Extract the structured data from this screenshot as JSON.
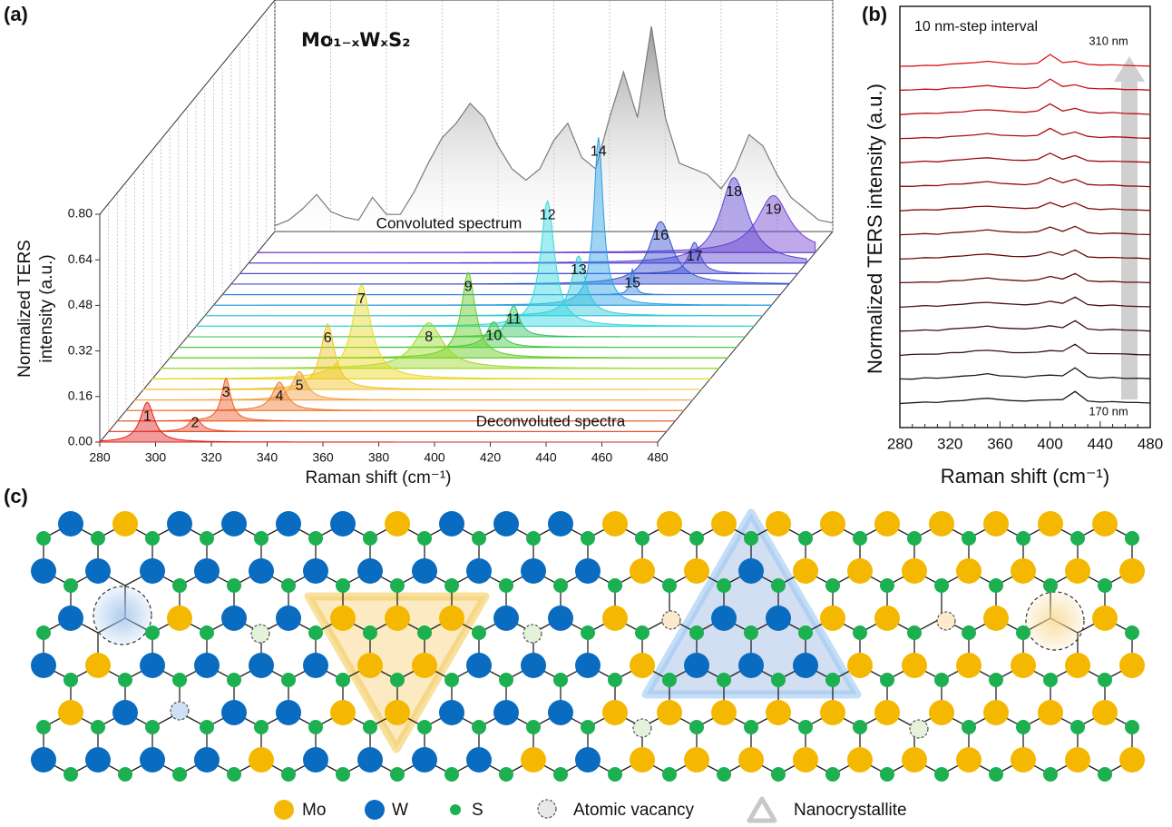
{
  "panel_labels": [
    "(a)",
    "(b)",
    "(c)"
  ],
  "chart_data": [
    {
      "type": "waterfall",
      "title": "Mo₁₋ₓWₓS₂",
      "xlabel": "Raman shift (cm⁻¹)",
      "ylabel": [
        "Normalized TERS",
        "intensity (a.u.)"
      ],
      "xlim": [
        280,
        480
      ],
      "ylim": [
        0,
        0.8
      ],
      "xticks": [
        280,
        300,
        320,
        340,
        360,
        380,
        400,
        420,
        440,
        460,
        480
      ],
      "yticks": [
        {
          "value": 0,
          "label": "0.00"
        },
        0.16,
        0.32,
        0.48,
        0.64,
        {
          "value": 0.8,
          "label": "0.80"
        }
      ],
      "deconvoluted_label": "Deconvoluted spectra",
      "series": [
        {
          "name": "1",
          "color": "#e02020",
          "center": 297,
          "height": 0.14,
          "fwhm": 6
        },
        {
          "name": "2",
          "color": "#e84a2a",
          "center": 311,
          "height": 0.05,
          "fwhm": 5
        },
        {
          "name": "3",
          "color": "#ee5a28",
          "center": 319,
          "height": 0.15,
          "fwhm": 4
        },
        {
          "name": "4",
          "color": "#f07a30",
          "center": 335,
          "height": 0.1,
          "fwhm": 6
        },
        {
          "name": "5",
          "color": "#f5a040",
          "center": 339,
          "height": 0.1,
          "fwhm": 6
        },
        {
          "name": "6",
          "color": "#f0c020",
          "center": 346,
          "height": 0.23,
          "fwhm": 6
        },
        {
          "name": "7",
          "color": "#e8d820",
          "center": 355,
          "height": 0.33,
          "fwhm": 8
        },
        {
          "name": "8",
          "color": "#9ad828",
          "center": 376,
          "height": 0.16,
          "fwhm": 12
        },
        {
          "name": "9",
          "color": "#60cc20",
          "center": 387,
          "height": 0.3,
          "fwhm": 6
        },
        {
          "name": "10",
          "color": "#40c840",
          "center": 393,
          "height": 0.09,
          "fwhm": 6
        },
        {
          "name": "11",
          "color": "#30c060",
          "center": 397,
          "height": 0.11,
          "fwhm": 5
        },
        {
          "name": "12",
          "color": "#30d8e0",
          "center": 406,
          "height": 0.44,
          "fwhm": 6
        },
        {
          "name": "13",
          "color": "#30c8d8",
          "center": 414,
          "height": 0.21,
          "fwhm": 6
        },
        {
          "name": "14",
          "color": "#2aa0e8",
          "center": 418,
          "height": 0.59,
          "fwhm": 4
        },
        {
          "name": "15",
          "color": "#3080e0",
          "center": 427,
          "height": 0.09,
          "fwhm": 2
        },
        {
          "name": "16",
          "color": "#3850d0",
          "center": 434,
          "height": 0.22,
          "fwhm": 10
        },
        {
          "name": "17",
          "color": "#4848d0",
          "center": 443,
          "height": 0.11,
          "fwhm": 5
        },
        {
          "name": "18",
          "color": "#5a40d0",
          "center": 454,
          "height": 0.3,
          "fwhm": 12
        },
        {
          "name": "19",
          "color": "#7040d0",
          "center": 465,
          "height": 0.2,
          "fwhm": 14
        }
      ],
      "convoluted": {
        "name": "Convoluted spectrum",
        "color": "#7a7a7a",
        "x": [
          280,
          285,
          290,
          295,
          300,
          305,
          310,
          315,
          320,
          325,
          330,
          335,
          340,
          345,
          350,
          355,
          360,
          365,
          370,
          375,
          380,
          385,
          390,
          395,
          400,
          405,
          410,
          415,
          420,
          425,
          430,
          435,
          440,
          445,
          450,
          455,
          460,
          465,
          470,
          475,
          480
        ],
        "values": [
          0.02,
          0.04,
          0.08,
          0.13,
          0.07,
          0.05,
          0.04,
          0.12,
          0.06,
          0.06,
          0.14,
          0.24,
          0.33,
          0.38,
          0.45,
          0.4,
          0.3,
          0.22,
          0.18,
          0.22,
          0.32,
          0.38,
          0.26,
          0.22,
          0.4,
          0.56,
          0.4,
          0.72,
          0.4,
          0.24,
          0.22,
          0.2,
          0.15,
          0.22,
          0.34,
          0.3,
          0.2,
          0.12,
          0.08,
          0.04,
          0.03
        ]
      }
    },
    {
      "type": "line",
      "xlabel": "Raman shift (cm⁻¹)",
      "ylabel": "Normalized TERS intensity (a.u.)",
      "interval_label": "10 nm-step interval",
      "top_label": "310 nm",
      "bottom_label": "170 nm",
      "xlim": [
        280,
        480
      ],
      "ylim": [
        0,
        17.5
      ],
      "xticks": [
        280,
        320,
        360,
        400,
        440,
        480
      ],
      "x": [
        280,
        290,
        300,
        310,
        320,
        330,
        340,
        350,
        360,
        370,
        380,
        390,
        400,
        410,
        420,
        430,
        440,
        450,
        460,
        470,
        480
      ],
      "series": [
        {
          "color": "#1a1a1a",
          "values": [
            1.0,
            1.03,
            1.06,
            1.04,
            1.1,
            1.12,
            1.18,
            1.22,
            1.16,
            1.12,
            1.1,
            1.14,
            1.15,
            1.16,
            1.5,
            1.1,
            1.06,
            1.08,
            1.05,
            1.04,
            1.02
          ]
        },
        {
          "color": "#261414",
          "values": [
            2.02,
            2.01,
            2.07,
            2.05,
            2.09,
            2.14,
            2.17,
            2.24,
            2.15,
            2.13,
            2.09,
            2.15,
            2.18,
            2.15,
            2.48,
            2.11,
            2.05,
            2.09,
            2.04,
            2.05,
            2.03
          ]
        },
        {
          "color": "#331212",
          "values": [
            3.0,
            3.04,
            3.05,
            3.05,
            3.11,
            3.12,
            3.19,
            3.21,
            3.17,
            3.11,
            3.11,
            3.13,
            3.2,
            3.17,
            3.46,
            3.09,
            3.07,
            3.07,
            3.06,
            3.03,
            3.02
          ]
        },
        {
          "color": "#401010",
          "values": [
            4.01,
            4.02,
            4.06,
            4.03,
            4.1,
            4.13,
            4.16,
            4.22,
            4.14,
            4.12,
            4.1,
            4.15,
            4.23,
            4.15,
            4.44,
            4.1,
            4.05,
            4.08,
            4.05,
            4.04,
            4.01
          ]
        },
        {
          "color": "#4d0e0e",
          "values": [
            5.0,
            5.03,
            5.07,
            5.04,
            5.09,
            5.12,
            5.18,
            5.2,
            5.16,
            5.13,
            5.1,
            5.14,
            5.25,
            5.16,
            5.42,
            5.11,
            5.06,
            5.09,
            5.05,
            5.03,
            5.02
          ]
        },
        {
          "color": "#5a0c0c",
          "values": [
            6.02,
            6.03,
            6.05,
            6.04,
            6.1,
            6.11,
            6.17,
            6.22,
            6.15,
            6.12,
            6.09,
            6.14,
            6.28,
            6.17,
            6.4,
            6.1,
            6.06,
            6.08,
            6.04,
            6.04,
            6.02
          ]
        },
        {
          "color": "#670a0a",
          "values": [
            7.0,
            7.02,
            7.06,
            7.05,
            7.1,
            7.13,
            7.18,
            7.21,
            7.16,
            7.11,
            7.1,
            7.15,
            7.3,
            7.16,
            7.38,
            7.09,
            7.06,
            7.07,
            7.05,
            7.04,
            7.01
          ]
        },
        {
          "color": "#740a0a",
          "values": [
            8.01,
            8.03,
            8.06,
            8.03,
            8.09,
            8.12,
            8.16,
            8.22,
            8.15,
            8.12,
            8.11,
            8.14,
            8.33,
            8.15,
            8.36,
            8.1,
            8.05,
            8.08,
            8.06,
            8.03,
            8.02
          ]
        },
        {
          "color": "#820a0a",
          "values": [
            9.0,
            9.04,
            9.05,
            9.04,
            9.1,
            9.12,
            9.18,
            9.2,
            9.16,
            9.13,
            9.1,
            9.13,
            9.35,
            9.16,
            9.34,
            9.11,
            9.06,
            9.09,
            9.05,
            9.04,
            9.02
          ]
        },
        {
          "color": "#900a0a",
          "values": [
            10.02,
            10.02,
            10.06,
            10.05,
            10.11,
            10.12,
            10.17,
            10.22,
            10.15,
            10.12,
            10.09,
            10.15,
            10.38,
            10.17,
            10.32,
            10.1,
            10.07,
            10.08,
            10.04,
            10.03,
            10.01
          ]
        },
        {
          "color": "#9e0a0a",
          "values": [
            11.0,
            11.03,
            11.07,
            11.04,
            11.1,
            11.13,
            11.18,
            11.21,
            11.16,
            11.11,
            11.1,
            11.14,
            11.4,
            11.15,
            11.3,
            11.09,
            11.06,
            11.07,
            11.05,
            11.04,
            11.02
          ]
        },
        {
          "color": "#ac0c0c",
          "values": [
            12.01,
            12.02,
            12.05,
            12.03,
            12.09,
            12.12,
            12.16,
            12.22,
            12.15,
            12.13,
            12.11,
            12.14,
            12.43,
            12.16,
            12.28,
            12.1,
            12.05,
            12.08,
            12.06,
            12.03,
            12.02
          ]
        },
        {
          "color": "#bb0e0e",
          "values": [
            13.0,
            13.04,
            13.06,
            13.05,
            13.1,
            13.11,
            13.18,
            13.2,
            13.17,
            13.12,
            13.1,
            13.15,
            13.45,
            13.15,
            13.26,
            13.11,
            13.06,
            13.09,
            13.05,
            13.04,
            13.01
          ]
        },
        {
          "color": "#c91010",
          "values": [
            14.02,
            14.03,
            14.06,
            14.04,
            14.11,
            14.12,
            14.17,
            14.21,
            14.15,
            14.12,
            14.09,
            14.13,
            14.48,
            14.17,
            14.24,
            14.1,
            14.07,
            14.08,
            14.04,
            14.04,
            14.02
          ]
        },
        {
          "color": "#d81212",
          "values": [
            15.01,
            15.02,
            15.05,
            15.04,
            15.1,
            15.13,
            15.16,
            15.22,
            15.16,
            15.11,
            15.1,
            15.14,
            15.5,
            15.16,
            15.22,
            15.09,
            15.06,
            15.07,
            15.05,
            15.03,
            15.02
          ]
        }
      ]
    }
  ],
  "diagram": {
    "legend": [
      "Mo",
      "W",
      "S",
      "Atomic vacancy",
      "Nanocrystallite"
    ]
  }
}
